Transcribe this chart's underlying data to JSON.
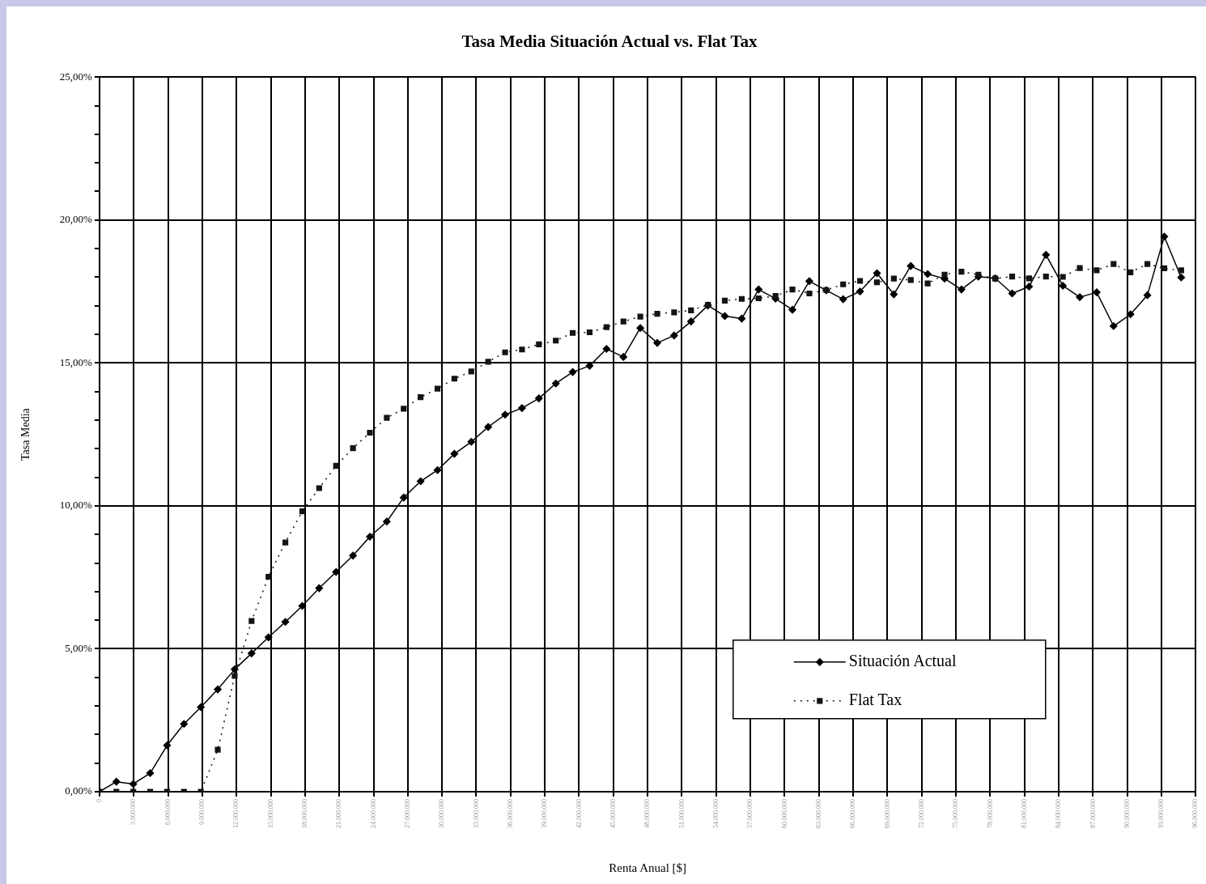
{
  "chart_data": {
    "type": "line",
    "title": "Tasa Media Situación Actual vs. Flat Tax",
    "xlabel": "Renta Anual [$]",
    "ylabel": "Tasa Media",
    "x": [
      0,
      1480000,
      2960000,
      4440000,
      5920000,
      7400000,
      8880000,
      10360000,
      11840000,
      13320000,
      14800000,
      16280000,
      17760000,
      19240000,
      20720000,
      22200000,
      23680000,
      25160000,
      26640000,
      28120000,
      29600000,
      31080000,
      32560000,
      34040000,
      35520000,
      37000000,
      38480000,
      39960000,
      41440000,
      42920000,
      44400000,
      45880000,
      47360000,
      48840000,
      50320000,
      51800000,
      53280000,
      54760000,
      56240000,
      57720000,
      59200000,
      60680000,
      62160000,
      63640000,
      65120000,
      66600000,
      68080000,
      69560000,
      71040000,
      72520000,
      74000000,
      75480000,
      76960000,
      78440000,
      79920000,
      81400000,
      82880000,
      84360000,
      85840000,
      87320000,
      88800000,
      90280000,
      91760000,
      93240000,
      94720000
    ],
    "series": [
      {
        "name": "Situación Actual",
        "color": "#000000",
        "line_style": "solid",
        "marker": "diamond",
        "values": [
          0,
          0.35,
          0.27,
          0.65,
          1.62,
          2.37,
          2.96,
          3.58,
          4.28,
          4.84,
          5.4,
          5.94,
          6.5,
          7.12,
          7.69,
          8.26,
          8.92,
          9.45,
          10.29,
          10.86,
          11.25,
          11.82,
          12.24,
          12.76,
          13.19,
          13.42,
          13.76,
          14.28,
          14.68,
          14.9,
          15.49,
          15.21,
          16.22,
          15.7,
          15.96,
          16.45,
          17.01,
          16.64,
          16.55,
          17.57,
          17.25,
          16.86,
          17.86,
          17.54,
          17.23,
          17.5,
          18.14,
          17.4,
          18.39,
          18.11,
          17.95,
          17.57,
          18.02,
          17.96,
          17.43,
          17.67,
          18.78,
          17.7,
          17.3,
          17.47,
          16.29,
          16.7,
          17.37,
          19.42,
          17.99
        ]
      },
      {
        "name": "Flat Tax",
        "color": "#141414",
        "line_style": "dotted",
        "marker": "square",
        "values": [
          0,
          0,
          0,
          0,
          0,
          0,
          0,
          1.47,
          4.05,
          5.97,
          7.52,
          8.72,
          9.81,
          10.62,
          11.4,
          12.02,
          12.56,
          13.08,
          13.4,
          13.8,
          14.1,
          14.45,
          14.7,
          15.04,
          15.37,
          15.47,
          15.65,
          15.78,
          16.05,
          16.07,
          16.25,
          16.45,
          16.62,
          16.72,
          16.77,
          16.84,
          17.03,
          17.18,
          17.24,
          17.26,
          17.34,
          17.57,
          17.43,
          17.55,
          17.75,
          17.87,
          17.82,
          17.95,
          17.9,
          17.78,
          18.09,
          18.19,
          18.09,
          17.95,
          18.02,
          17.96,
          18.02,
          18.01,
          18.32,
          18.24,
          18.46,
          18.17,
          18.46,
          18.31,
          18.24
        ]
      }
    ],
    "xlim": [
      0,
      96000000
    ],
    "xticks": [
      0,
      {
        "value": 3000000,
        "label": "3.000.000"
      },
      {
        "value": 6000000,
        "label": "6.000.000"
      },
      {
        "value": 9000000,
        "label": "9.000.000"
      },
      {
        "value": 12000000,
        "label": "12.000.000"
      },
      {
        "value": 15000000,
        "label": "15.000.000"
      },
      {
        "value": 18000000,
        "label": "18.000.000"
      },
      {
        "value": 21000000,
        "label": "21.000.000"
      },
      {
        "value": 24000000,
        "label": "24.000.000"
      },
      {
        "value": 27000000,
        "label": "27.000.000"
      },
      {
        "value": 30000000,
        "label": "30.000.000"
      },
      {
        "value": 33000000,
        "label": "33.000.000"
      },
      {
        "value": 36000000,
        "label": "36.000.000"
      },
      {
        "value": 39000000,
        "label": "39.000.000"
      },
      {
        "value": 42000000,
        "label": "42.000.000"
      },
      {
        "value": 45000000,
        "label": "45.000.000"
      },
      {
        "value": 48000000,
        "label": "48.000.000"
      },
      {
        "value": 51000000,
        "label": "51.000.000"
      },
      {
        "value": 54000000,
        "label": "54.000.000"
      },
      {
        "value": 57000000,
        "label": "57.000.000"
      },
      {
        "value": 60000000,
        "label": "60.000.000"
      },
      {
        "value": 63000000,
        "label": "63.000.000"
      },
      {
        "value": 66000000,
        "label": "66.000.000"
      },
      {
        "value": 69000000,
        "label": "69.000.000"
      },
      {
        "value": 72000000,
        "label": "72.000.000"
      },
      {
        "value": 75000000,
        "label": "75.000.000"
      },
      {
        "value": 78000000,
        "label": "78.000.000"
      },
      {
        "value": 81000000,
        "label": "81.000.000"
      },
      {
        "value": 84000000,
        "label": "84.000.000"
      },
      {
        "value": 87000000,
        "label": "87.000.000"
      },
      {
        "value": 90000000,
        "label": "90.000.000"
      },
      {
        "value": 93000000,
        "label": "93.000.000"
      },
      {
        "value": 96000000,
        "label": "96.000.000"
      }
    ],
    "ylim": [
      0,
      25
    ],
    "yticks": [
      {
        "value": 0,
        "label": "0,00%"
      },
      {
        "value": 1,
        "label": null
      },
      {
        "value": 2,
        "label": null
      },
      {
        "value": 3,
        "label": null
      },
      {
        "value": 4,
        "label": null
      },
      {
        "value": 5,
        "label": "5,00%"
      },
      {
        "value": 6,
        "label": null
      },
      {
        "value": 7,
        "label": null
      },
      {
        "value": 8,
        "label": null
      },
      {
        "value": 9,
        "label": null
      },
      {
        "value": 10,
        "label": "10,00%"
      },
      {
        "value": 11,
        "label": null
      },
      {
        "value": 12,
        "label": null
      },
      {
        "value": 13,
        "label": null
      },
      {
        "value": 14,
        "label": null
      },
      {
        "value": 15,
        "label": "15,00%"
      },
      {
        "value": 16,
        "label": null
      },
      {
        "value": 17,
        "label": null
      },
      {
        "value": 18,
        "label": null
      },
      {
        "value": 19,
        "label": null
      },
      {
        "value": 20,
        "label": "20,00%"
      },
      {
        "value": 21,
        "label": null
      },
      {
        "value": 22,
        "label": null
      },
      {
        "value": 23,
        "label": null
      },
      {
        "value": 24,
        "label": null
      },
      {
        "value": 25,
        "label": "25,00%"
      }
    ],
    "grid": true,
    "legend": "bottom right"
  }
}
